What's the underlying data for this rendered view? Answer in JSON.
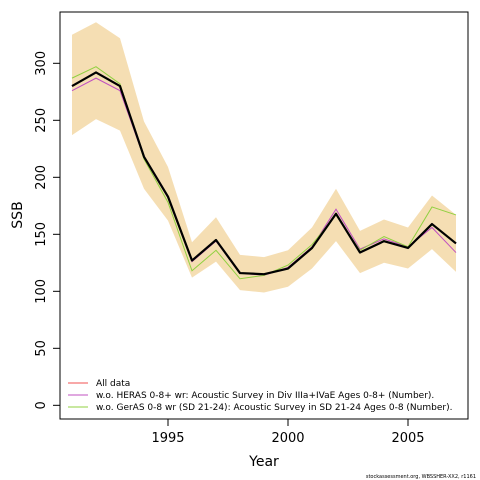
{
  "chart_data": {
    "type": "line",
    "title": "",
    "xlabel": "Year",
    "ylabel": "SSB",
    "xlim": [
      1990.5,
      2007.5
    ],
    "ylim": [
      -12,
      345
    ],
    "x_ticks": [
      1995,
      2000,
      2005
    ],
    "y_ticks": [
      0,
      50,
      100,
      150,
      200,
      250,
      300
    ],
    "grid": false,
    "legend_position": "bottom-left",
    "x": [
      1991,
      1992,
      1993,
      1994,
      1995,
      1996,
      1997,
      1998,
      1999,
      2000,
      2001,
      2002,
      2003,
      2004,
      2005,
      2006,
      2007
    ],
    "base": {
      "values": [
        280,
        292,
        280,
        218,
        183,
        127,
        145,
        116,
        115,
        120,
        138,
        168,
        134,
        144,
        138,
        159,
        142
      ]
    },
    "confidence_band": {
      "lower": [
        237,
        251,
        241,
        190,
        162,
        112,
        126,
        101,
        99,
        104,
        120,
        144,
        116,
        125,
        120,
        137,
        117
      ],
      "upper": [
        325,
        336,
        322,
        249,
        209,
        143,
        165,
        132,
        130,
        136,
        156,
        190,
        153,
        163,
        156,
        184,
        167
      ]
    },
    "series": [
      {
        "name": "All data",
        "color": "#f05050",
        "values": [
          280,
          292,
          280,
          218,
          183,
          127,
          145,
          116,
          115,
          120,
          138,
          168,
          134,
          144,
          138,
          159,
          142
        ]
      },
      {
        "name": "w.o. HERAS 0-8+ wr: Acoustic Survey in Div IIIa+IVaE Ages 0-8+ (Number).",
        "color": "#c050c0",
        "values": [
          276,
          287,
          276,
          217,
          182,
          126,
          144,
          116,
          114,
          121,
          139,
          172,
          137,
          146,
          139,
          156,
          134
        ]
      },
      {
        "name": "w.o. GerAS 0-8 wr (SD 21-24): Acoustic Survey in SD 21-24 Ages 0-8 (Number).",
        "color": "#90d040",
        "values": [
          287,
          297,
          282,
          216,
          178,
          118,
          136,
          111,
          114,
          123,
          141,
          167,
          136,
          148,
          139,
          174,
          167
        ]
      }
    ],
    "colors": {
      "band": "#f5deb3",
      "base_line": "#000000"
    }
  },
  "footer": {
    "note": "stockassessment.org, WBSSHER-XX2, r1161"
  }
}
